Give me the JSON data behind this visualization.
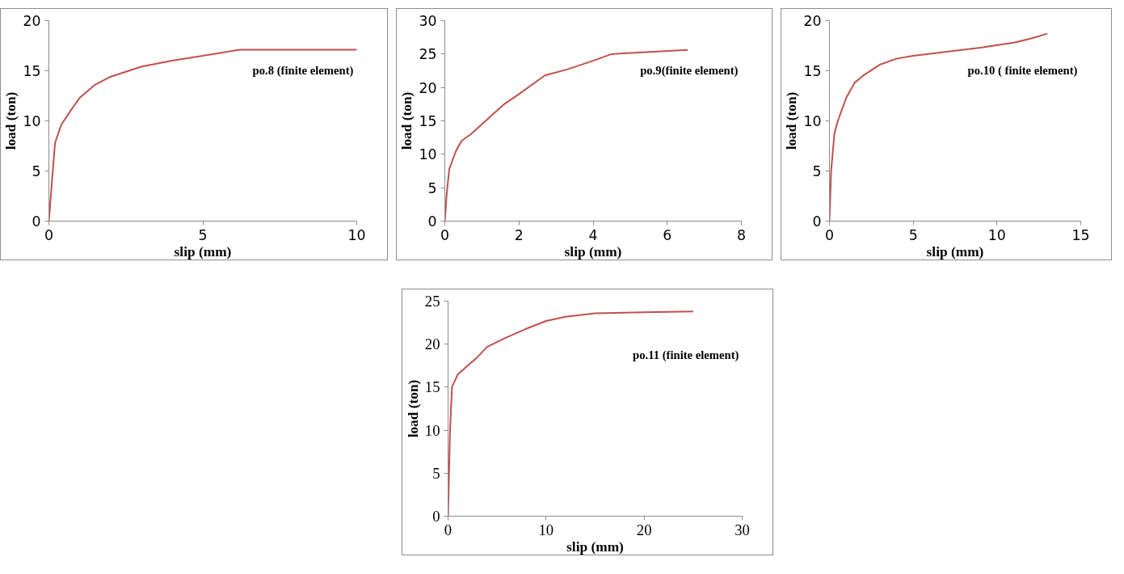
{
  "chart_data": [
    {
      "type": "line",
      "xlabel": "slip (mm)",
      "ylabel": "load (ton)",
      "xlim": [
        0,
        10
      ],
      "ylim": [
        0,
        20
      ],
      "xticks": [
        0,
        5,
        10
      ],
      "yticks": [
        0,
        5,
        10,
        15,
        20
      ],
      "series": [
        {
          "name": "po.8 (finite element)",
          "color": "#c0504d",
          "x": [
            0,
            0.1,
            0.2,
            0.4,
            0.7,
            1,
            1.5,
            2,
            3,
            4,
            5,
            6.2,
            10
          ],
          "values": [
            0,
            4,
            7.8,
            9.6,
            11,
            12.3,
            13.6,
            14.4,
            15.4,
            16,
            16.5,
            17.1,
            17.1
          ]
        }
      ]
    },
    {
      "type": "line",
      "xlabel": "slip (mm)",
      "ylabel": "load (ton)",
      "xlim": [
        0,
        8
      ],
      "ylim": [
        0,
        30
      ],
      "xticks": [
        0,
        2,
        4,
        6,
        8
      ],
      "yticks": [
        0,
        5,
        10,
        15,
        20,
        25,
        30
      ],
      "series": [
        {
          "name": "po.9(finite element)",
          "color": "#c0504d",
          "x": [
            0,
            0.05,
            0.12,
            0.3,
            0.45,
            0.7,
            1,
            1.6,
            2,
            2.7,
            3.3,
            4,
            4.5,
            6.55
          ],
          "values": [
            0,
            4,
            7.8,
            10.5,
            12,
            13,
            14.5,
            17.5,
            19,
            21.8,
            22.7,
            24,
            25,
            25.6
          ]
        }
      ]
    },
    {
      "type": "line",
      "xlabel": "slip (mm)",
      "ylabel": "load (ton)",
      "xlim": [
        0,
        15
      ],
      "ylim": [
        0,
        20
      ],
      "xticks": [
        0,
        5,
        10,
        15
      ],
      "yticks": [
        0,
        5,
        10,
        15,
        20
      ],
      "series": [
        {
          "name": "po.10 ( finite element)",
          "color": "#c0504d",
          "x": [
            0,
            0.1,
            0.3,
            0.5,
            1,
            1.5,
            2,
            3,
            4,
            5,
            7,
            9,
            11,
            12,
            13
          ],
          "values": [
            0,
            5,
            8.8,
            10,
            12.3,
            13.8,
            14.5,
            15.6,
            16.2,
            16.5,
            16.9,
            17.3,
            17.8,
            18.2,
            18.7
          ]
        }
      ]
    },
    {
      "type": "line",
      "xlabel": "slip (mm)",
      "ylabel": "load (ton)",
      "xlim": [
        0,
        30
      ],
      "ylim": [
        0,
        25
      ],
      "xticks": [
        0,
        10,
        20,
        30
      ],
      "yticks": [
        0,
        5,
        10,
        15,
        20,
        25
      ],
      "series": [
        {
          "name": "po.11 (finite element)",
          "color": "#c0504d",
          "x": [
            0,
            0.2,
            0.4,
            1,
            2,
            3,
            4,
            6,
            8,
            10,
            12,
            15,
            20,
            25
          ],
          "values": [
            0,
            10,
            15,
            16.5,
            17.5,
            18.5,
            19.7,
            20.8,
            21.8,
            22.7,
            23.2,
            23.6,
            23.7,
            23.8
          ]
        }
      ]
    }
  ]
}
